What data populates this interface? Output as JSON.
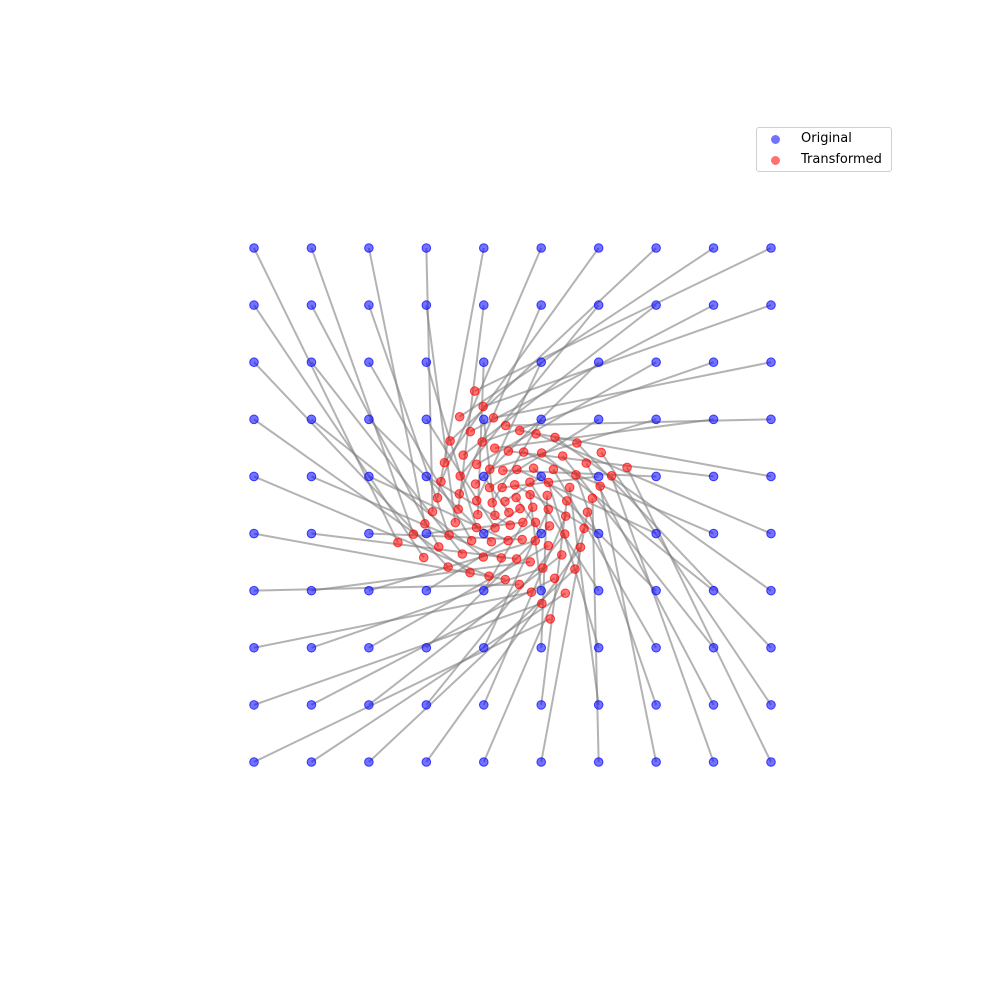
{
  "chart_data": {
    "type": "scatter",
    "title": "",
    "xlabel": "",
    "ylabel": "",
    "axes_visible": false,
    "grid": false,
    "xlim": [
      -1.05,
      1.05
    ],
    "ylim": [
      -1.05,
      1.05
    ],
    "legend_position": "top-right",
    "series": [
      {
        "name": "Original",
        "color": "#0000ff",
        "alpha": 0.55,
        "description": "10x10 grid of points from -1 to 1",
        "grid_values": [
          -1.0,
          -0.7778,
          -0.5556,
          -0.3333,
          -0.1111,
          0.1111,
          0.3333,
          0.5556,
          0.7778,
          1.0
        ]
      },
      {
        "name": "Transformed",
        "color": "#ff0000",
        "alpha": 0.55,
        "description": "each grid point rotated and contracted toward the center (swirl)"
      }
    ],
    "connector_color": "#808080",
    "connector_alpha": 0.6,
    "transform": {
      "scale_min": 0.19,
      "scale_max": 0.33,
      "rotation_deg": 115
    }
  },
  "legend": {
    "items": [
      {
        "label": "Original",
        "color": "#0000ff"
      },
      {
        "label": "Transformed",
        "color": "#ff0000"
      }
    ]
  }
}
